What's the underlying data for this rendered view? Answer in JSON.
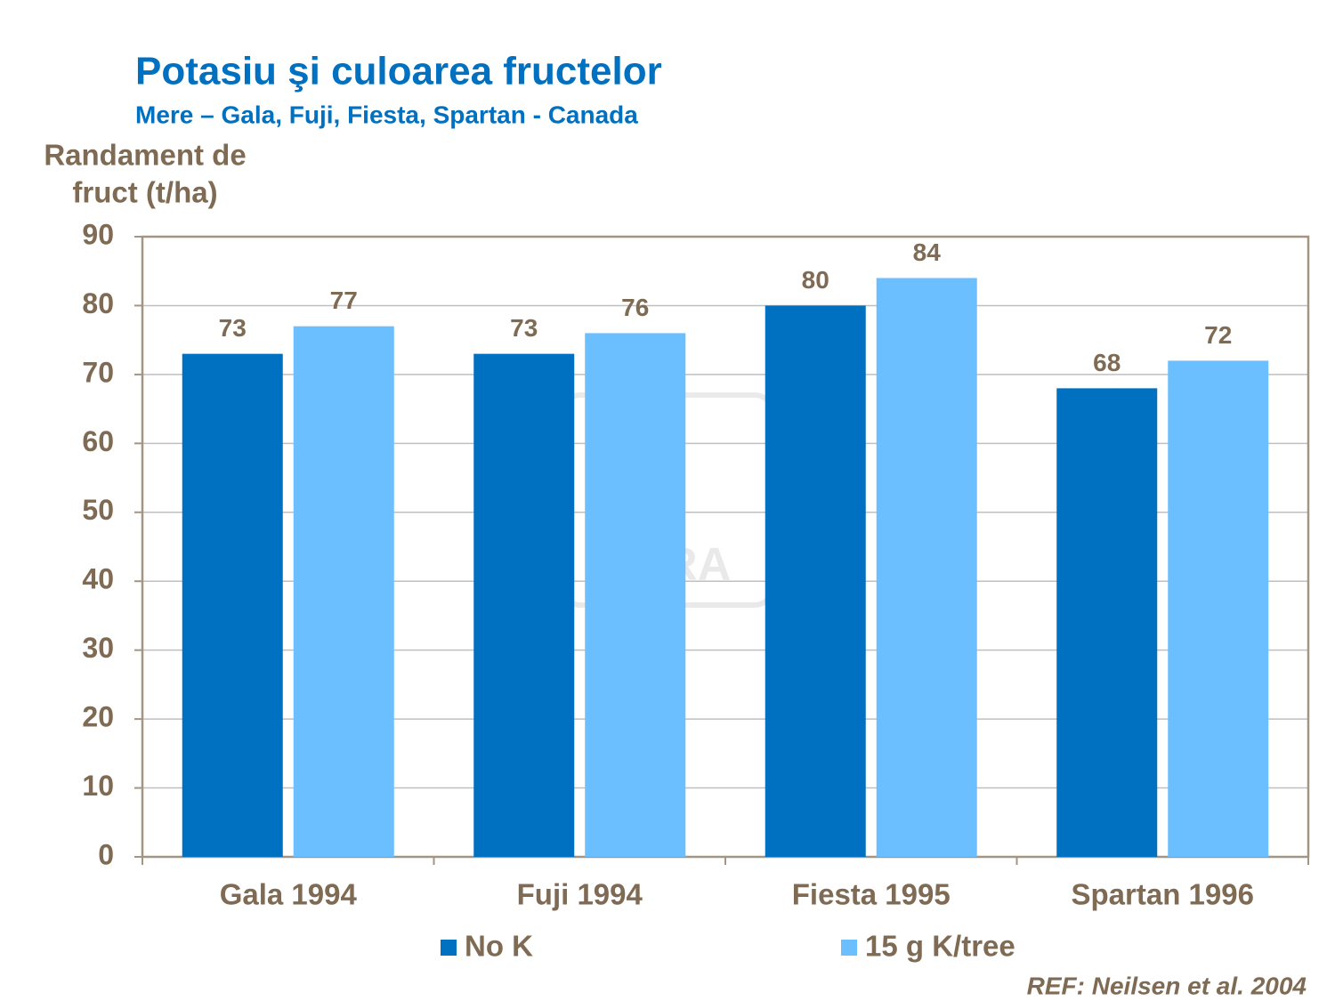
{
  "chart_data": {
    "type": "bar",
    "title": "Potasiu şi culoarea fructelor",
    "subtitle": "Mere – Gala, Fuji, Fiesta, Spartan - Canada",
    "ylabel": [
      "Randament de",
      "fruct (t/ha)"
    ],
    "categories": [
      "Gala 1994",
      "Fuji 1994",
      "Fiesta 1995",
      "Spartan 1996"
    ],
    "series": [
      {
        "name": "No K",
        "color": "#0070c0",
        "values": [
          73,
          73,
          80,
          68
        ]
      },
      {
        "name": "15 g K/tree",
        "color": "#6bbfff",
        "values": [
          77,
          76,
          84,
          72
        ]
      }
    ],
    "ylim": [
      0,
      90
    ],
    "yticks": [
      0,
      10,
      20,
      30,
      40,
      50,
      60,
      70,
      80,
      90
    ],
    "grid": true,
    "legend": "bottom",
    "note": "REF: Neilsen et al. 2004",
    "watermark": "YARA"
  }
}
